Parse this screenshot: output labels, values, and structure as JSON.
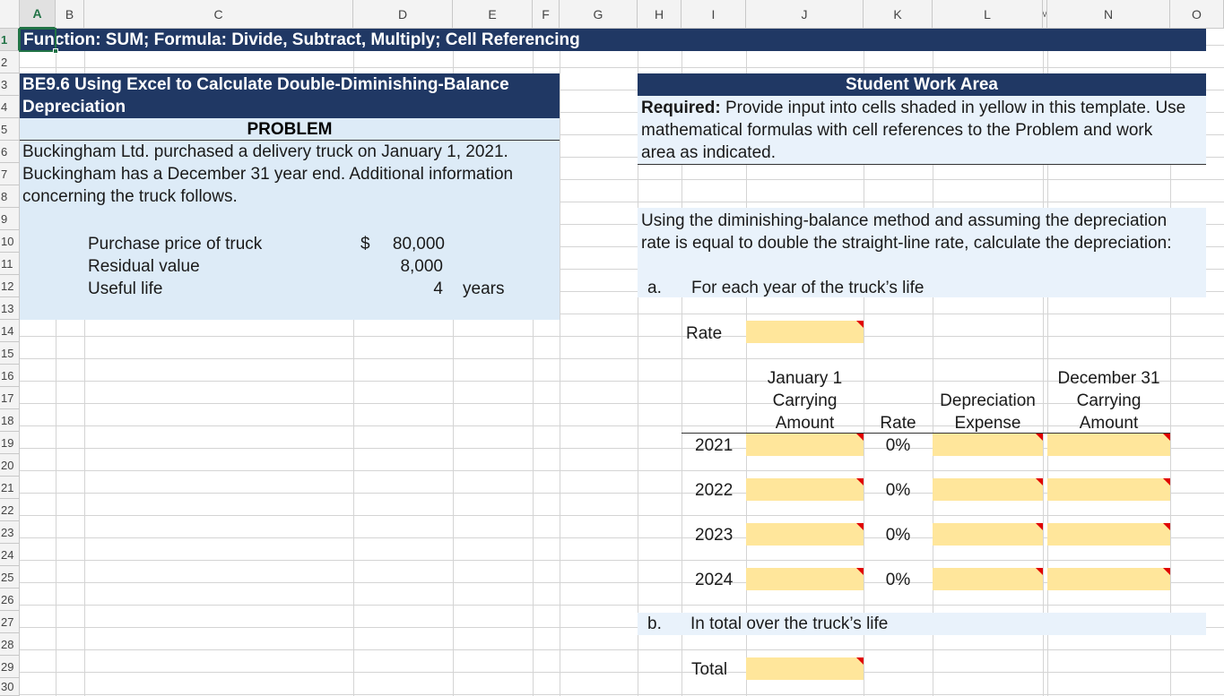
{
  "columns": [
    "A",
    "B",
    "C",
    "D",
    "E",
    "F",
    "G",
    "H",
    "I",
    "J",
    "K",
    "L",
    "M",
    "N",
    "O"
  ],
  "rows": [
    "1",
    "2",
    "3",
    "4",
    "5",
    "6",
    "7",
    "8",
    "9",
    "10",
    "11",
    "12",
    "13",
    "14",
    "15",
    "16",
    "17",
    "18",
    "19",
    "20",
    "21",
    "22",
    "23",
    "24",
    "25",
    "26",
    "27",
    "28",
    "29",
    "30"
  ],
  "title_bar": "Function: SUM; Formula: Divide, Subtract, Multiply; Cell Referencing",
  "problem": {
    "heading_line1": "BE9.6 Using Excel to Calculate Double-Diminishing-Balance",
    "heading_line2": "Depreciation",
    "label": "PROBLEM",
    "text_line1": "Buckingham Ltd. purchased a delivery truck on January 1, 2021.",
    "text_line2": "Buckingham has a December 31 year end. Additional information",
    "text_line3": "concerning the truck follows.",
    "items": [
      {
        "label": "Purchase price of truck",
        "currency": "$",
        "value": "80,000",
        "unit": ""
      },
      {
        "label": "Residual value",
        "currency": "",
        "value": "8,000",
        "unit": ""
      },
      {
        "label": "Useful life",
        "currency": "",
        "value": "4",
        "unit": "years"
      }
    ]
  },
  "work": {
    "heading": "Student Work Area",
    "required_label": "Required:",
    "required_line1": " Provide input into cells shaded in yellow in this template. Use",
    "required_line2": "mathematical formulas with cell references to the Problem and work",
    "required_line3": "area as indicated.",
    "instr_line1": "Using the diminishing-balance method and assuming the depreciation",
    "instr_line2": "rate is equal to double the straight-line rate, calculate the depreciation:",
    "part_a_letter": "a.",
    "part_a_text": "For each year of the truck’s life",
    "rate_label": "Rate",
    "col_headers": {
      "jan1_l1": "January 1",
      "jan1_l2": "Carrying",
      "jan1_l3": "Amount",
      "rate": "Rate",
      "dep_l1": "Depreciation",
      "dep_l2": "Expense",
      "dec31_l1": "December 31",
      "dec31_l2": "Carrying",
      "dec31_l3": "Amount"
    },
    "years": [
      {
        "year": "2021",
        "rate": "0%"
      },
      {
        "year": "2022",
        "rate": "0%"
      },
      {
        "year": "2023",
        "rate": "0%"
      },
      {
        "year": "2024",
        "rate": "0%"
      }
    ],
    "part_b_letter": "b.",
    "part_b_text": "In total over the truck’s life",
    "total_label": "Total"
  },
  "colors": {
    "navy": "#203864",
    "light_blue": "#ddebf7",
    "yellow": "#ffe69b",
    "comment_marker": "#e00000"
  }
}
